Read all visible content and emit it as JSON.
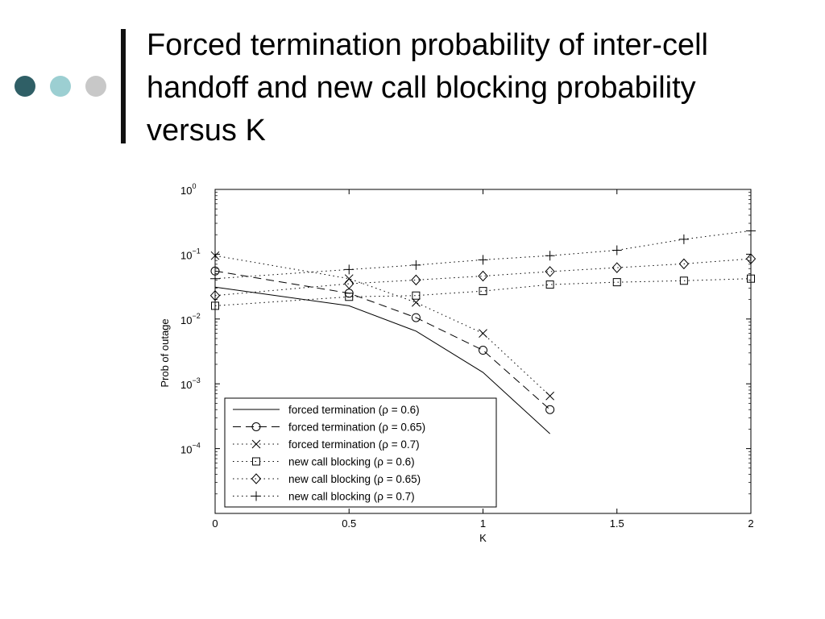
{
  "slide": {
    "title": "Forced termination probability of inter-cell handoff and new call blocking probability versus K",
    "dot_colors": [
      "#2f5f66",
      "#9ccfd2",
      "#c8c8c8"
    ]
  },
  "chart_data": {
    "type": "line",
    "title": "",
    "xlabel": "K",
    "ylabel": "Prob of outage",
    "xlim": [
      0,
      2
    ],
    "ylim": [
      1e-05,
      1
    ],
    "yscale": "log",
    "grid": false,
    "legend_position": "bottom-left",
    "x_ticks": [
      "0",
      "0.5",
      "1",
      "1.5",
      "2"
    ],
    "y_ticks": [
      {
        "base": "10",
        "exp": "0"
      },
      {
        "base": "10",
        "exp": "−1"
      },
      {
        "base": "10",
        "exp": "−2"
      },
      {
        "base": "10",
        "exp": "−3"
      },
      {
        "base": "10",
        "exp": "−4"
      }
    ],
    "series": [
      {
        "name": "forced termination (ρ = 0.6)",
        "line": "solid",
        "marker": "none",
        "x": [
          0,
          0.5,
          0.75,
          1,
          1.25
        ],
        "y": [
          0.031,
          0.016,
          0.0065,
          0.0015,
          0.00017
        ]
      },
      {
        "name": "forced termination (ρ = 0.65)",
        "line": "dashed",
        "marker": "circle",
        "x": [
          0,
          0.5,
          0.75,
          1,
          1.25
        ],
        "y": [
          0.055,
          0.025,
          0.0105,
          0.0033,
          0.0004
        ]
      },
      {
        "name": "forced termination (ρ = 0.7)",
        "line": "dotted",
        "marker": "x",
        "x": [
          0,
          0.5,
          0.75,
          1,
          1.25
        ],
        "y": [
          0.095,
          0.042,
          0.018,
          0.006,
          0.00065
        ]
      },
      {
        "name": "new call blocking (ρ = 0.6)",
        "line": "dotted",
        "marker": "square",
        "x": [
          0,
          0.5,
          0.75,
          1,
          1.25,
          1.5,
          1.75,
          2
        ],
        "y": [
          0.016,
          0.022,
          0.023,
          0.027,
          0.034,
          0.037,
          0.039,
          0.042
        ]
      },
      {
        "name": "new call blocking (ρ = 0.65)",
        "line": "dotted",
        "marker": "diamond",
        "x": [
          0,
          0.5,
          0.75,
          1,
          1.25,
          1.5,
          1.75,
          2
        ],
        "y": [
          0.023,
          0.035,
          0.04,
          0.046,
          0.054,
          0.062,
          0.071,
          0.085
        ]
      },
      {
        "name": "new call blocking (ρ = 0.7)",
        "line": "dotted",
        "marker": "plus",
        "x": [
          0,
          0.5,
          0.75,
          1,
          1.25,
          1.5,
          1.75,
          2
        ],
        "y": [
          0.042,
          0.058,
          0.068,
          0.082,
          0.095,
          0.115,
          0.17,
          0.23
        ]
      }
    ]
  }
}
